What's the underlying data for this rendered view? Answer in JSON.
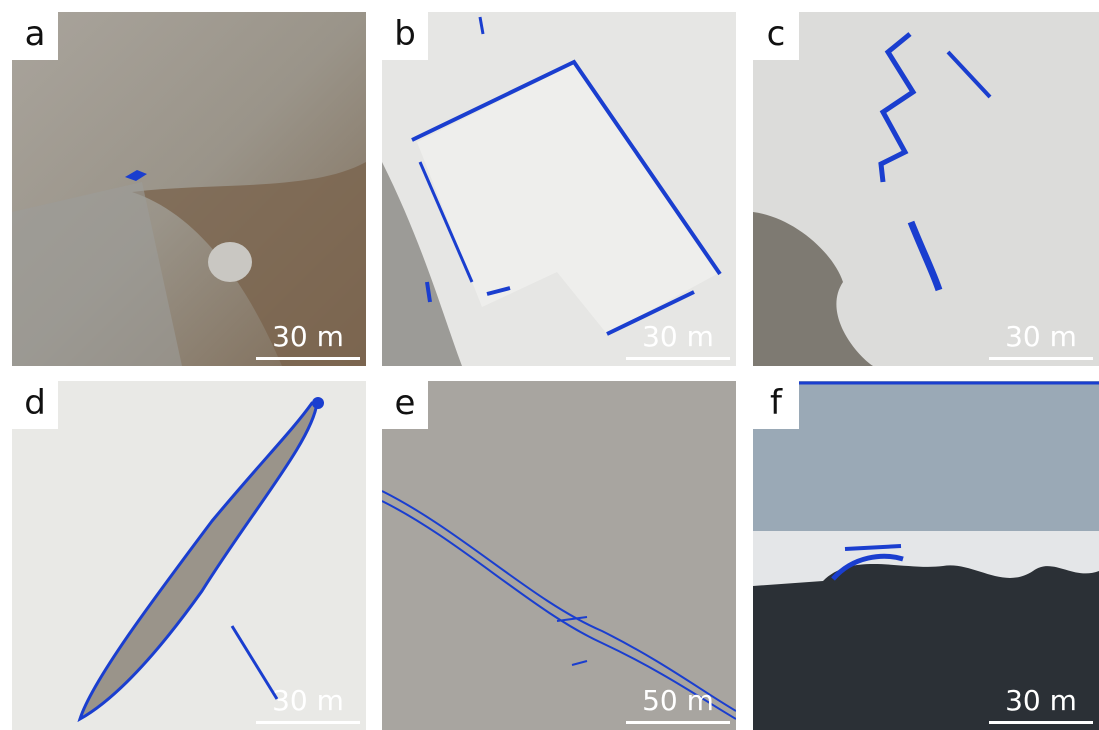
{
  "panels": [
    {
      "label": "a",
      "scale": "30 m"
    },
    {
      "label": "b",
      "scale": "30 m"
    },
    {
      "label": "c",
      "scale": "30 m"
    },
    {
      "label": "d",
      "scale": "30 m"
    },
    {
      "label": "e",
      "scale": "50 m"
    },
    {
      "label": "f",
      "scale": "30 m"
    }
  ]
}
